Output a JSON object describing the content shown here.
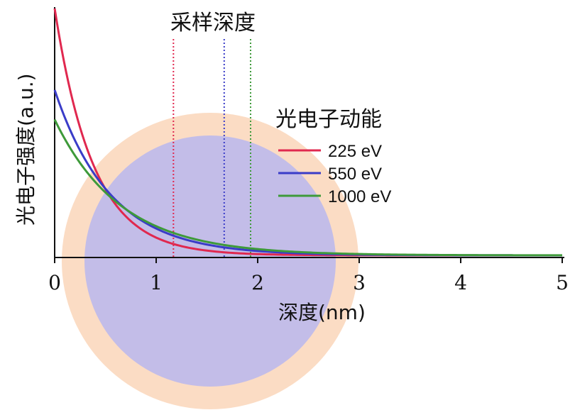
{
  "chart_data": {
    "type": "line",
    "xlabel": "深度(nm)",
    "ylabel": "光电子强度(a.u.)",
    "xlim": [
      0,
      5
    ],
    "xticks": [
      "0",
      "1",
      "2",
      "3",
      "4",
      "5"
    ],
    "grid": false,
    "legend": {
      "title": "光电子动能",
      "placement": "top-right"
    },
    "annotation": "采样深度",
    "series": [
      {
        "name": "225 eV",
        "color": "#e0284f",
        "amplitude": 1.0,
        "decay_length_nm": 0.38,
        "sampling_depth_nm": 1.17
      },
      {
        "name": "550 eV",
        "color": "#3a3cc8",
        "amplitude": 0.67,
        "decay_length_nm": 0.55,
        "sampling_depth_nm": 1.67
      },
      {
        "name": "1000 eV",
        "color": "#3e9a3a",
        "amplitude": 0.55,
        "decay_length_nm": 0.65,
        "sampling_depth_nm": 1.93
      }
    ],
    "background_shapes": [
      {
        "name": "outer-disc",
        "color": "#fbdcc4"
      },
      {
        "name": "inner-disc",
        "color": "#c3bde8"
      }
    ]
  }
}
